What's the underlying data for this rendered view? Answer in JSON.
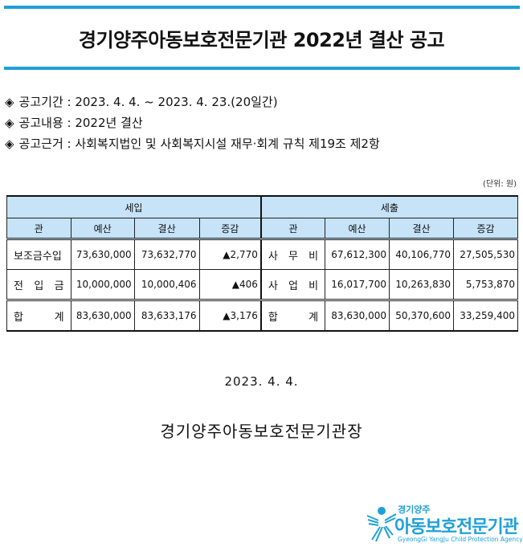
{
  "title": "경기양주아동보호전문기관 2022년 결산 공고",
  "accent_color": "#1fa0d8",
  "header_fill": "#c6e3f7",
  "bullets": [
    {
      "icon": "diamond-icon",
      "text": "공고기간 : 2023. 4. 4. ~ 2023. 4. 23.(20일간)"
    },
    {
      "icon": "diamond-icon",
      "text": "공고내용 : 2022년 결산"
    },
    {
      "icon": "diamond-icon",
      "text": "공고근거 : 사회복지법인 및 사회복지시설 재무·회계 규칙 제19조 제2항"
    }
  ],
  "unit": "(단위: 원)",
  "table": {
    "groups": [
      "세입",
      "세출"
    ],
    "columns": [
      "관",
      "예산",
      "결산",
      "증감",
      "관",
      "예산",
      "결산",
      "증감"
    ],
    "rows": [
      [
        "보조금수입",
        "73,630,000",
        "73,632,770",
        "▲2,770",
        "사 무 비",
        "67,612,300",
        "40,106,770",
        "27,505,530"
      ],
      [
        "전 입 금",
        "10,000,000",
        "10,000,406",
        "▲406",
        "사 업 비",
        "16,017,700",
        "10,263,830",
        "5,753,870"
      ]
    ],
    "total": [
      "합 계",
      "83,630,000",
      "83,633,176",
      "▲3,176",
      "합 계",
      "83,630,000",
      "50,370,600",
      "33,259,400"
    ]
  },
  "date": "2023. 4. 4.",
  "signer": "경기양주아동보호전문기관장",
  "logo": {
    "line1": "경기양주",
    "line2": "아동보호전문기관",
    "line3": "GyeongGi YangJu Child Protection Agency"
  }
}
